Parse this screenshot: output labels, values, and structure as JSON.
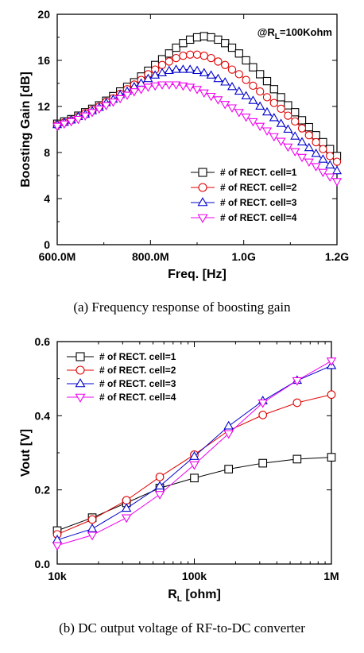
{
  "colors": [
    "#000000",
    "#e00000",
    "#0000cc",
    "#ee00ee"
  ],
  "markers": [
    "square",
    "circle",
    "triangle-up",
    "triangle-down"
  ],
  "chart_data": [
    {
      "type": "line",
      "caption": "(a) Frequency response of boosting gain",
      "xlabel": "Freq. [Hz]",
      "ylabel": "Boosting Gain [dB]",
      "annotation": {
        "prefix": "@R",
        "sub": "L",
        "suffix": "=100Kohm"
      },
      "xlim": [
        600,
        1200
      ],
      "ylim": [
        0,
        20
      ],
      "xticks": [
        {
          "value": 600,
          "label": "600.0M"
        },
        {
          "value": 800,
          "label": "800.0M"
        },
        {
          "value": 1000,
          "label": "1.0G"
        },
        {
          "value": 1200,
          "label": "1.2G"
        }
      ],
      "yticks": [
        {
          "value": 0,
          "label": "0"
        },
        {
          "value": 4,
          "label": "4"
        },
        {
          "value": 8,
          "label": "8"
        },
        {
          "value": 12,
          "label": "12"
        },
        {
          "value": 16,
          "label": "16"
        },
        {
          "value": 20,
          "label": "20"
        }
      ],
      "legend_position": "bottom-right",
      "x_units": "MHz",
      "x": [
        600,
        615,
        630,
        645,
        660,
        675,
        690,
        705,
        720,
        735,
        750,
        765,
        780,
        795,
        810,
        825,
        840,
        855,
        870,
        885,
        900,
        915,
        930,
        945,
        960,
        975,
        990,
        1005,
        1020,
        1035,
        1050,
        1065,
        1080,
        1095,
        1110,
        1125,
        1140,
        1155,
        1170,
        1185,
        1200
      ],
      "series": [
        {
          "name": "# of RECT. cell=1",
          "values": [
            10.5,
            10.7,
            10.9,
            11.2,
            11.5,
            11.8,
            12.1,
            12.5,
            12.9,
            13.3,
            13.7,
            14.1,
            14.6,
            15.1,
            15.6,
            16.1,
            16.6,
            17.1,
            17.5,
            17.8,
            18.0,
            18.1,
            18.0,
            17.8,
            17.5,
            17.1,
            16.6,
            16.0,
            15.4,
            14.8,
            14.2,
            13.5,
            12.8,
            12.1,
            11.5,
            10.8,
            10.2,
            9.5,
            8.9,
            8.3,
            7.7
          ]
        },
        {
          "name": "# of RECT. cell=2",
          "values": [
            10.4,
            10.6,
            10.8,
            11.1,
            11.4,
            11.7,
            12.0,
            12.4,
            12.7,
            13.1,
            13.5,
            13.9,
            14.3,
            14.8,
            15.2,
            15.6,
            15.9,
            16.2,
            16.4,
            16.5,
            16.5,
            16.4,
            16.2,
            15.9,
            15.6,
            15.2,
            14.8,
            14.3,
            13.8,
            13.3,
            12.8,
            12.3,
            11.8,
            11.2,
            10.7,
            10.1,
            9.5,
            8.9,
            8.3,
            7.7,
            7.2
          ]
        },
        {
          "name": "# of RECT. cell=3",
          "values": [
            10.4,
            10.6,
            10.8,
            11.1,
            11.3,
            11.6,
            11.9,
            12.3,
            12.6,
            13.0,
            13.3,
            13.7,
            14.0,
            14.4,
            14.7,
            14.9,
            15.1,
            15.2,
            15.2,
            15.2,
            15.1,
            14.9,
            14.7,
            14.4,
            14.1,
            13.7,
            13.3,
            12.9,
            12.5,
            12.0,
            11.5,
            11.0,
            10.5,
            10.0,
            9.4,
            8.9,
            8.4,
            7.9,
            7.4,
            6.9,
            6.4
          ]
        },
        {
          "name": "# of RECT. cell=4",
          "values": [
            10.3,
            10.5,
            10.7,
            10.9,
            11.2,
            11.5,
            11.8,
            12.1,
            12.4,
            12.7,
            13.0,
            13.3,
            13.5,
            13.7,
            13.8,
            13.9,
            13.9,
            13.9,
            13.8,
            13.7,
            13.5,
            13.2,
            12.9,
            12.6,
            12.2,
            11.9,
            11.5,
            11.1,
            10.7,
            10.3,
            9.9,
            9.4,
            9.0,
            8.5,
            8.1,
            7.6,
            7.2,
            6.8,
            6.3,
            5.9,
            5.5
          ]
        }
      ]
    },
    {
      "type": "line",
      "caption": "(b) DC output voltage of RF-to-DC converter",
      "xlabel": {
        "prefix": "R",
        "sub": "L",
        "suffix": " [ohm]"
      },
      "ylabel": "Vout [V]",
      "xscale": "log",
      "xlim": [
        10000,
        1000000
      ],
      "ylim": [
        0,
        0.6
      ],
      "xticks": [
        {
          "value": 10000,
          "label": "10k"
        },
        {
          "value": 100000,
          "label": "100k"
        },
        {
          "value": 1000000,
          "label": "1M"
        }
      ],
      "yticks": [
        {
          "value": 0,
          "label": "0.0"
        },
        {
          "value": 0.2,
          "label": "0.2"
        },
        {
          "value": 0.4,
          "label": "0.4"
        },
        {
          "value": 0.6,
          "label": "0.6"
        }
      ],
      "legend_position": "top-left",
      "x": [
        10000,
        18000,
        32000,
        56000,
        100000,
        178000,
        316000,
        562000,
        1000000
      ],
      "series": [
        {
          "name": "# of RECT. cell=1",
          "values": [
            0.09,
            0.125,
            0.165,
            0.205,
            0.232,
            0.256,
            0.272,
            0.283,
            0.288
          ]
        },
        {
          "name": "# of RECT. cell=2",
          "values": [
            0.08,
            0.12,
            0.172,
            0.235,
            0.295,
            0.36,
            0.402,
            0.435,
            0.457
          ]
        },
        {
          "name": "# of RECT. cell=3",
          "values": [
            0.065,
            0.095,
            0.15,
            0.21,
            0.29,
            0.372,
            0.44,
            0.495,
            0.535
          ]
        },
        {
          "name": "# of RECT. cell=4",
          "values": [
            0.05,
            0.078,
            0.125,
            0.188,
            0.268,
            0.352,
            0.435,
            0.495,
            0.548
          ]
        }
      ]
    }
  ]
}
